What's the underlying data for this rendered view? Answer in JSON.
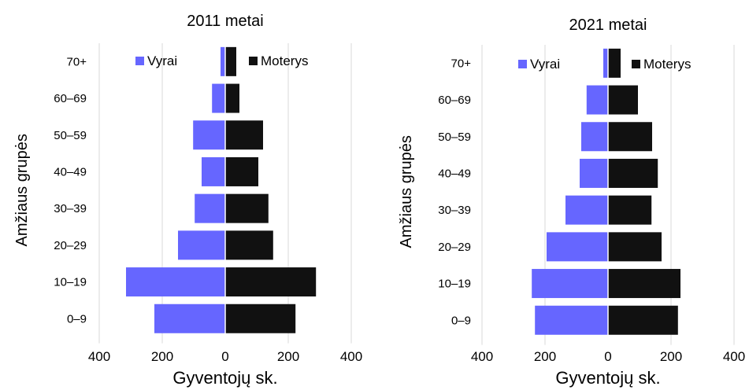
{
  "chart_data": [
    {
      "type": "bar",
      "orientation": "horizontal",
      "title": "2011 metai",
      "ylabel": "Amžiaus grupės",
      "xlabel": "Gyventojų sk.",
      "categories": [
        "70+",
        "60–69",
        "50–59",
        "40–49",
        "30–39",
        "20–29",
        "10–19",
        "0–9"
      ],
      "xticks": [
        "400",
        "200",
        "0",
        "200",
        "400"
      ],
      "xlim": [
        -400,
        400
      ],
      "legend_position": "top",
      "grid": true,
      "series": [
        {
          "name": "Vyrai",
          "color": "#6666ff",
          "values": [
            15,
            42,
            102,
            75,
            97,
            150,
            315,
            225
          ]
        },
        {
          "name": "Moterys",
          "color": "#111111",
          "values": [
            35,
            45,
            120,
            105,
            137,
            152,
            288,
            223
          ]
        }
      ]
    },
    {
      "type": "bar",
      "orientation": "horizontal",
      "title": "2021 metai",
      "ylabel": "Amžiaus grupės",
      "xlabel": "Gyventojų sk.",
      "categories": [
        "70+",
        "60–69",
        "50–59",
        "40–49",
        "30–39",
        "20–29",
        "10–19",
        "0–9"
      ],
      "xticks": [
        "400",
        "200",
        "0",
        "200",
        "400"
      ],
      "xlim": [
        -400,
        400
      ],
      "legend_position": "top",
      "grid": true,
      "series": [
        {
          "name": "Vyrai",
          "color": "#6666ff",
          "values": [
            15,
            68,
            85,
            90,
            135,
            195,
            242,
            232
          ]
        },
        {
          "name": "Moterys",
          "color": "#111111",
          "values": [
            40,
            95,
            140,
            158,
            138,
            170,
            230,
            222
          ]
        }
      ]
    }
  ]
}
